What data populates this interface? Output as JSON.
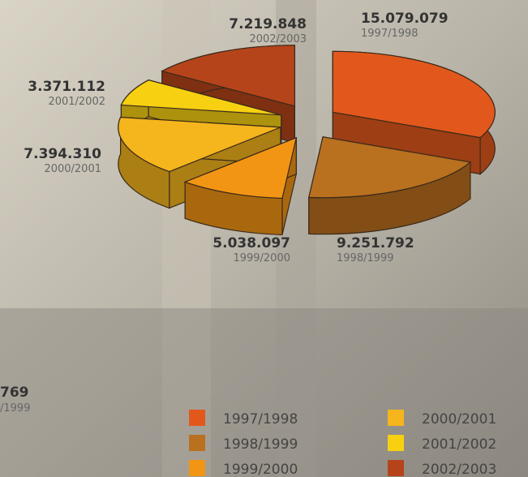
{
  "chart_data": {
    "type": "pie",
    "categories": [
      "1997/1998",
      "1998/1999",
      "1999/2000",
      "2000/2001",
      "2001/2002",
      "2002/2003"
    ],
    "values": [
      15079079,
      9251792,
      5038097,
      7394310,
      3371112,
      7219848
    ],
    "value_labels": [
      "15.079.079",
      "9.251.792",
      "5.038.097",
      "7.394.310",
      "3.371.112",
      "7.219.848"
    ],
    "colors": [
      "#e2581c",
      "#b9701f",
      "#f39514",
      "#f5b51c",
      "#f7d012",
      "#b5441a"
    ],
    "annotations": [
      "769",
      "/1999"
    ]
  }
}
